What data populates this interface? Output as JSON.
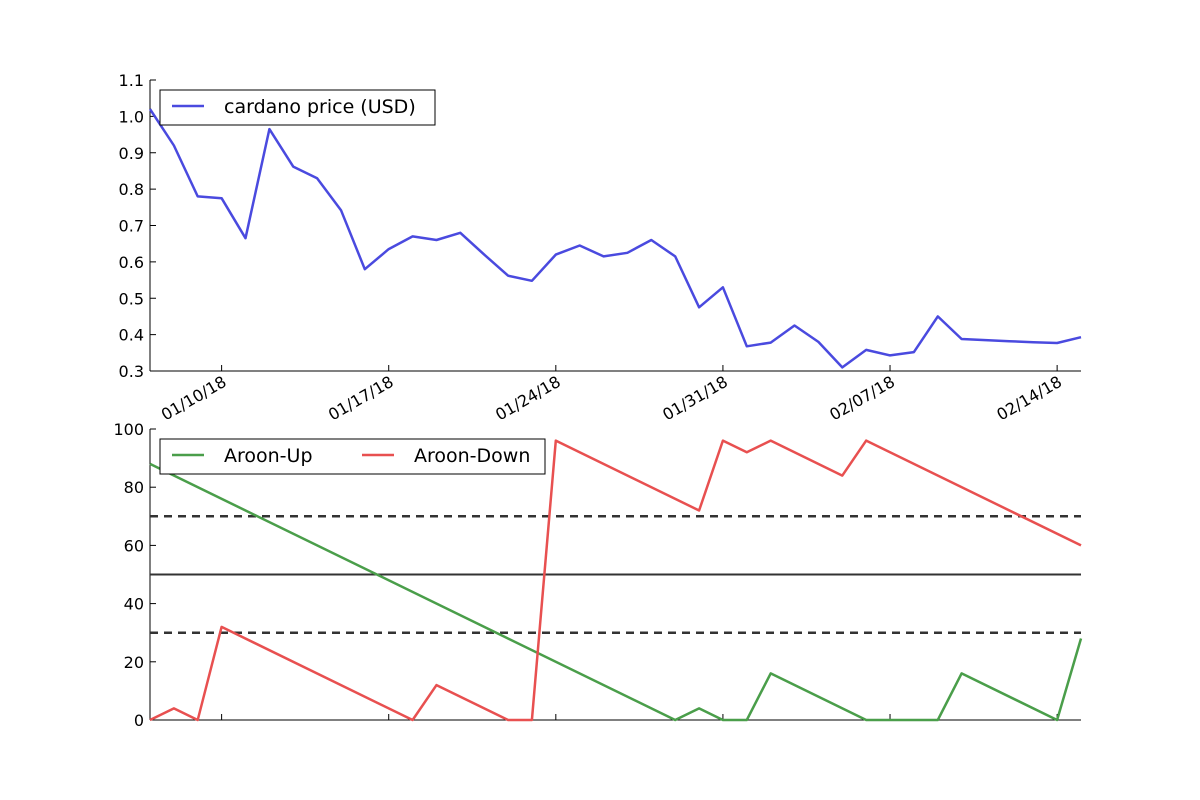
{
  "chart_data": [
    {
      "type": "line",
      "title": "",
      "xlabel": "",
      "ylabel": "",
      "ylim": [
        0.3,
        1.1
      ],
      "yticks": [
        "0.3",
        "0.4",
        "0.5",
        "0.6",
        "0.7",
        "0.8",
        "0.9",
        "1.0",
        "1.1"
      ],
      "xticks": [
        "01/10/18",
        "01/17/18",
        "01/24/18",
        "01/31/18",
        "02/07/18",
        "02/14/18"
      ],
      "grid": false,
      "legend": "top-left",
      "series": [
        {
          "name": "cardano price (USD)",
          "color": "#4a4adf",
          "dates": [
            "01/07/18",
            "01/08/18",
            "01/09/18",
            "01/10/18",
            "01/11/18",
            "01/12/18",
            "01/13/18",
            "01/14/18",
            "01/15/18",
            "01/16/18",
            "01/17/18",
            "01/18/18",
            "01/19/18",
            "01/20/18",
            "01/21/18",
            "01/22/18",
            "01/23/18",
            "01/24/18",
            "01/25/18",
            "01/26/18",
            "01/27/18",
            "01/28/18",
            "01/29/18",
            "01/30/18",
            "01/31/18",
            "02/01/18",
            "02/02/18",
            "02/03/18",
            "02/04/18",
            "02/05/18",
            "02/06/18",
            "02/07/18",
            "02/08/18",
            "02/09/18",
            "02/10/18",
            "02/11/18",
            "02/12/18",
            "02/13/18",
            "02/14/18",
            "02/15/18"
          ],
          "values": [
            1.02,
            0.92,
            0.78,
            0.775,
            0.665,
            0.965,
            0.862,
            0.83,
            0.742,
            0.58,
            0.635,
            0.67,
            0.66,
            0.68,
            0.62,
            0.562,
            0.548,
            0.62,
            0.645,
            0.615,
            0.625,
            0.66,
            0.615,
            0.475,
            0.53,
            0.368,
            0.378,
            0.425,
            0.38,
            0.31,
            0.358,
            0.343,
            0.352,
            0.45,
            0.388,
            0.385,
            0.382,
            0.379,
            0.377,
            0.393
          ]
        }
      ]
    },
    {
      "type": "line",
      "title": "",
      "xlabel": "",
      "ylabel": "",
      "ylim": [
        0,
        100
      ],
      "yticks": [
        "0",
        "20",
        "40",
        "60",
        "80",
        "100"
      ],
      "grid": false,
      "legend": "top-left",
      "reference_lines": [
        {
          "y": 70,
          "style": "dashed"
        },
        {
          "y": 50,
          "style": "solid"
        },
        {
          "y": 30,
          "style": "dashed"
        }
      ],
      "series": [
        {
          "name": "Aroon-Up",
          "color": "#4a9e4a",
          "dates": [
            "01/07/18",
            "01/29/18",
            "01/30/18",
            "01/31/18",
            "02/01/18",
            "02/02/18",
            "02/06/18",
            "02/07/18",
            "02/09/18",
            "02/10/18",
            "02/14/18",
            "02/15/18"
          ],
          "values": [
            88,
            0,
            4,
            0,
            0,
            16,
            0,
            0,
            0,
            16,
            0,
            28
          ]
        },
        {
          "name": "Aroon-Down",
          "color": "#e85050",
          "dates": [
            "01/07/18",
            "01/08/18",
            "01/09/18",
            "01/10/18",
            "01/18/18",
            "01/19/18",
            "01/22/18",
            "01/23/18",
            "01/24/18",
            "01/30/18",
            "01/31/18",
            "02/01/18",
            "02/02/18",
            "02/05/18",
            "02/06/18",
            "02/15/18"
          ],
          "values": [
            0,
            4,
            0,
            32,
            0,
            12,
            0,
            0,
            96,
            72,
            96,
            92,
            96,
            84,
            96,
            60
          ]
        }
      ]
    }
  ]
}
